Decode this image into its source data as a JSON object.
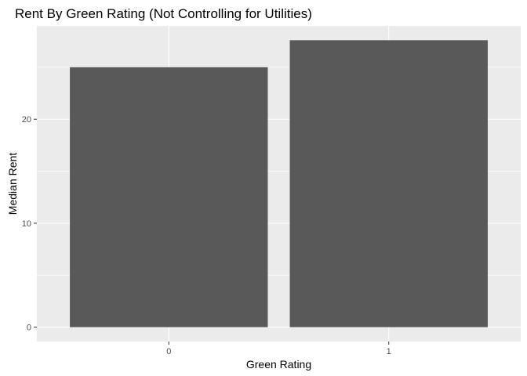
{
  "chart_data": {
    "type": "bar",
    "title": "Rent By Green Rating (Not Controlling for Utilities)",
    "xlabel": "Green Rating",
    "ylabel": "Median Rent",
    "categories": [
      "0",
      "1"
    ],
    "values": [
      25,
      27.6
    ],
    "ylim": [
      -1.38,
      28.98
    ],
    "yticks": [
      0,
      10,
      20
    ],
    "grid": true,
    "legend": "none",
    "bar_color": "#595959",
    "panel_color": "#ebebeb",
    "grid_color": "#ffffff"
  }
}
